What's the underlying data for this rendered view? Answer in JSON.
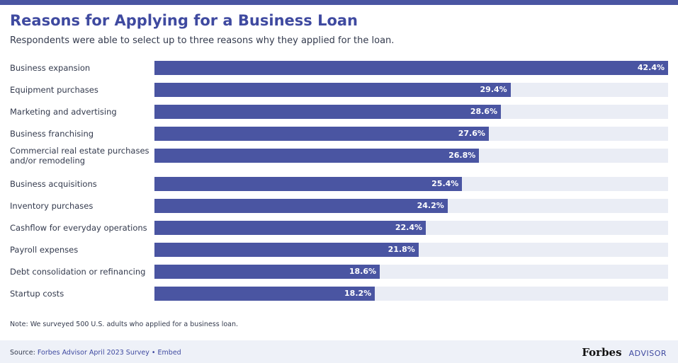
{
  "title": "Reasons for Applying for a Business Loan",
  "subtitle": "Respondents were able to select up to three reasons why they applied for the loan.",
  "note": "Note: We surveyed 500 U.S. adults who applied for a business loan.",
  "footer": {
    "source_label": "Source:",
    "source_text": "Forbes Advisor April 2023 Survey",
    "separator": "•",
    "embed_label": "Embed",
    "brand_name": "Forbes",
    "brand_sub": "ADVISOR"
  },
  "colors": {
    "accent": "#4a55a2",
    "track": "#eaedf5",
    "title": "#3f4aa0",
    "footer_bg": "#eef1f8"
  },
  "chart_data": {
    "type": "bar",
    "orientation": "horizontal",
    "title": "Reasons for Applying for a Business Loan",
    "subtitle": "Respondents were able to select up to three reasons why they applied for the loan.",
    "xlabel": "",
    "ylabel": "",
    "unit": "%",
    "xlim": [
      0,
      42.4
    ],
    "grid": false,
    "categories": [
      "Business expansion",
      "Equipment purchases",
      "Marketing and advertising",
      "Business franchising",
      "Commercial real estate purchases and/or remodeling",
      "Business acquisitions",
      "Inventory purchases",
      "Cashflow for everyday operations",
      "Payroll expenses",
      "Debt consolidation or refinancing",
      "Startup costs"
    ],
    "values": [
      42.4,
      29.4,
      28.6,
      27.6,
      26.8,
      25.4,
      24.2,
      22.4,
      21.8,
      18.6,
      18.2
    ],
    "value_labels": [
      "42.4%",
      "29.4%",
      "28.6%",
      "27.6%",
      "26.8%",
      "25.4%",
      "24.2%",
      "22.4%",
      "21.8%",
      "18.6%",
      "18.2%"
    ]
  }
}
